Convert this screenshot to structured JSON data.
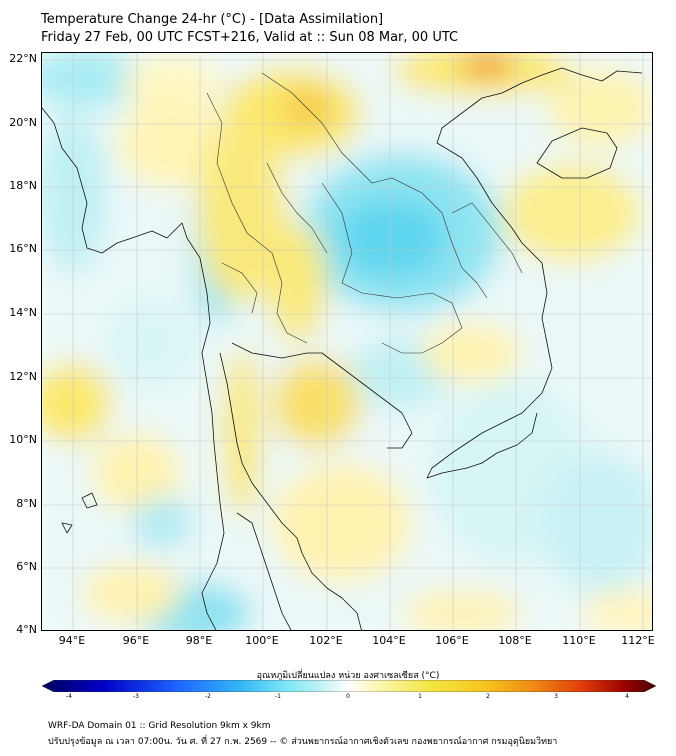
{
  "title": {
    "line1": "Temperature Change 24-hr (°C) - [Data Assimilation]",
    "line2": "Friday 27 Feb, 00 UTC FCST+216, Valid at :: Sun 08 Mar, 00 UTC"
  },
  "map": {
    "lat_labels": [
      "22°N",
      "20°N",
      "18°N",
      "16°N",
      "14°N",
      "12°N",
      "10°N",
      "8°N",
      "6°N",
      "4°N"
    ],
    "lon_labels": [
      "94°E",
      "96°E",
      "98°E",
      "100°E",
      "102°E",
      "104°E",
      "106°E",
      "108°E",
      "110°E",
      "112°E"
    ]
  },
  "colorbar": {
    "title": "อุณหภูมิเปลี่ยนแปลง หน่วย องศาเซลเซียส (°C)",
    "ticks": [
      "-4",
      "-3",
      "-2",
      "-1",
      "0",
      "1",
      "2",
      "3",
      "4"
    ],
    "colors": [
      "#00005a",
      "#0000c8",
      "#1e64ff",
      "#33b5f5",
      "#7fe6f7",
      "#c8f4f4",
      "#ffffff",
      "#fbf6b0",
      "#f3e645",
      "#f7c520",
      "#ef8a14",
      "#e13c0a",
      "#9a0000",
      "#4a0000"
    ]
  },
  "footer": {
    "line1": "WRF-DA Domain 01 :: Grid Resolution 9km x 9km",
    "line2": "ปรับปรุงข้อมูล ณ เวลา 07:00น. วัน ศ. ที่ 27 ก.พ. 2569 -- © ส่วนพยากรณ์อากาศเชิงตัวเลข กองพยากรณ์อากาศ กรมอุตุนิยมวิทยา"
  }
}
